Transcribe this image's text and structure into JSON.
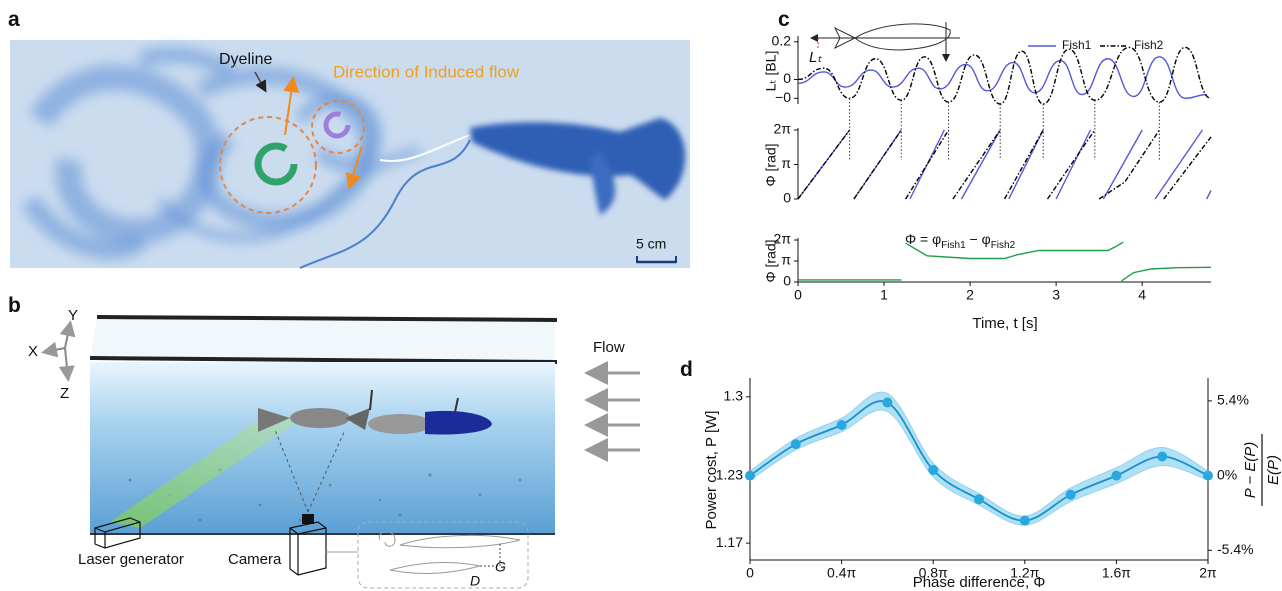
{
  "panel_labels": [
    "a",
    "b",
    "c",
    "d"
  ],
  "panel_a": {
    "dyeline": "Dyeline",
    "flow_direction": "Direction of Induced flow",
    "scale_bar": "5 cm"
  },
  "panel_b": {
    "axis_x": "X",
    "axis_y": "Y",
    "axis_z": "Z",
    "flow": "Flow",
    "laser": "Laser generator",
    "camera": "Camera",
    "gap": "G",
    "distance": "D"
  },
  "chart_data": [
    {
      "type": "line",
      "ylabel": "Lₜ [BL]",
      "annotation": "Lₜ",
      "xlim": [
        0,
        4.8
      ],
      "ylim": [
        -0.13,
        0.22
      ],
      "yticks": [
        0.2,
        0,
        {
          "value": -0.1,
          "label": "−0"
        }
      ],
      "series": [
        {
          "name": "Fish1",
          "color": "#5558d8",
          "dash": false,
          "x": [
            0,
            0.3,
            0.55,
            0.85,
            1.1,
            1.4,
            1.65,
            1.95,
            2.2,
            2.5,
            2.75,
            3.05,
            3.3,
            3.6,
            3.9,
            4.2,
            4.5,
            4.75
          ],
          "values": [
            -0.02,
            0.04,
            -0.04,
            0.05,
            -0.04,
            0.06,
            -0.05,
            0.08,
            -0.06,
            0.09,
            -0.07,
            0.1,
            -0.08,
            0.11,
            -0.09,
            0.12,
            -0.1,
            -0.08
          ]
        },
        {
          "name": "Fish2",
          "color": "#000000",
          "dash": true,
          "x": [
            0,
            0.3,
            0.6,
            0.9,
            1.2,
            1.47,
            1.75,
            2.05,
            2.35,
            2.6,
            2.85,
            3.15,
            3.45,
            3.85,
            4.2,
            4.5,
            4.8
          ],
          "values": [
            0,
            0.06,
            -0.1,
            0.11,
            -0.11,
            0.12,
            -0.12,
            0.13,
            -0.13,
            0.15,
            -0.13,
            0.16,
            -0.11,
            0.17,
            -0.12,
            0.17,
            -0.1
          ]
        }
      ]
    },
    {
      "type": "line",
      "ylabel": "Φ [rad]",
      "xlim": [
        0,
        4.8
      ],
      "ylim": [
        0,
        2
      ],
      "yticks": [
        0,
        {
          "value": 1,
          "label": "π"
        },
        {
          "value": 2,
          "label": "2π"
        }
      ],
      "series": [
        {
          "color": "#5558d8",
          "dash": false,
          "x": [
            0,
            0.6,
            null,
            0.65,
            1.2,
            null,
            1.3,
            1.7,
            null,
            1.9,
            2.35,
            null,
            2.45,
            2.85,
            null,
            3.0,
            3.4,
            null,
            3.55,
            4.0,
            null,
            4.15,
            4.7,
            null,
            4.75,
            4.8
          ],
          "values": [
            0,
            2,
            null,
            0,
            2,
            null,
            0,
            2,
            null,
            0,
            2,
            null,
            0,
            2,
            null,
            0,
            2,
            null,
            0,
            2,
            null,
            0,
            2,
            null,
            0,
            0.25
          ]
        },
        {
          "color": "#000000",
          "dash": true,
          "x": [
            0,
            0.6,
            null,
            0.65,
            1.2,
            null,
            1.25,
            1.75,
            null,
            1.8,
            2.35,
            null,
            2.4,
            2.85,
            null,
            2.9,
            3.45,
            null,
            3.5,
            3.8,
            4.2,
            null,
            4.25,
            4.8
          ],
          "values": [
            0,
            2,
            null,
            0,
            2,
            null,
            0,
            2,
            null,
            0,
            2,
            null,
            0,
            2,
            null,
            0,
            2,
            null,
            0,
            0.5,
            2,
            null,
            0,
            1.8
          ]
        }
      ]
    },
    {
      "type": "line",
      "ylabel": "Φ [rad]",
      "xlabel": "Time, t [s]",
      "annotation": [
        "Φ = φ",
        "Fish1",
        " − φ",
        "Fish2"
      ],
      "xlim": [
        0,
        4.8
      ],
      "ylim": [
        0,
        2
      ],
      "xticks": [
        0,
        1,
        2,
        3,
        4
      ],
      "yticks": [
        0,
        {
          "value": 1,
          "label": "π"
        },
        {
          "value": 2,
          "label": "2π"
        }
      ],
      "series": [
        {
          "color": "#1e9e4a",
          "dash": false,
          "x": [
            0,
            1.2,
            null,
            1.25,
            1.5,
            2.0,
            2.4,
            2.55,
            2.8,
            3.2,
            3.6,
            3.7,
            3.78,
            null,
            3.76,
            3.9,
            4.1,
            4.4,
            4.8
          ],
          "values": [
            0.1,
            0.1,
            null,
            1.85,
            1.25,
            1.12,
            1.12,
            1.3,
            1.5,
            1.5,
            1.5,
            1.7,
            1.9,
            null,
            0.05,
            0.45,
            0.62,
            0.68,
            0.7
          ]
        }
      ]
    },
    {
      "type": "line",
      "xlabel": "Phase difference, Φ",
      "ylabel": "Power cost, P [W]",
      "y2label": {
        "numerator": "P − E(P)",
        "denominator": "E(P)"
      },
      "color": "#1a8fd0",
      "band_color": "#8fd3f0",
      "xlim": [
        0,
        2
      ],
      "ylim": [
        1.155,
        1.315
      ],
      "y2lim": [
        -6.1,
        6.91
      ],
      "xticks": [
        0,
        {
          "value": 0.4,
          "label": "0.4π"
        },
        {
          "value": 0.8,
          "label": "0.8π"
        },
        {
          "value": 1.2,
          "label": "1.2π"
        },
        {
          "value": 1.6,
          "label": "1.6π"
        },
        {
          "value": 2,
          "label": "2π"
        }
      ],
      "yticks": [
        1.17,
        1.23,
        1.3
      ],
      "y2ticks": [
        {
          "value": 5.4,
          "label": "5.4%"
        },
        {
          "value": 0,
          "label": "0%"
        },
        {
          "value": -5.4,
          "label": "-5.4%"
        }
      ],
      "x": [
        0,
        0.2,
        0.4,
        0.6,
        0.8,
        1.0,
        1.2,
        1.4,
        1.6,
        1.8,
        2.0
      ],
      "values": [
        1.23,
        1.258,
        1.275,
        1.295,
        1.235,
        1.209,
        1.19,
        1.213,
        1.23,
        1.247,
        1.23
      ],
      "lower": [
        1.226,
        1.253,
        1.269,
        1.287,
        1.229,
        1.204,
        1.186,
        1.207,
        1.223,
        1.239,
        1.226
      ],
      "upper": [
        1.234,
        1.263,
        1.281,
        1.303,
        1.241,
        1.214,
        1.194,
        1.219,
        1.237,
        1.255,
        1.234
      ]
    }
  ]
}
